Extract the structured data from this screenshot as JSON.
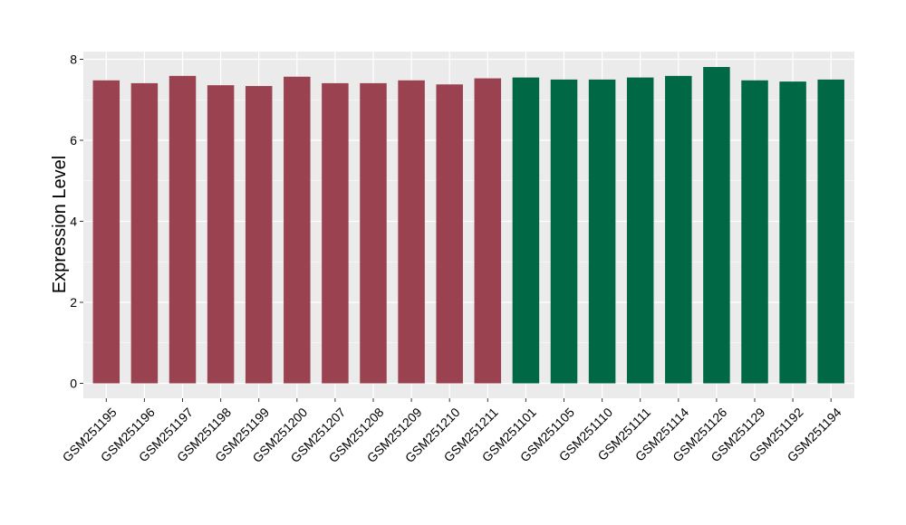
{
  "chart_data": {
    "type": "bar",
    "title": "",
    "xlabel": "",
    "ylabel": "Expression Level",
    "ylim": [
      0,
      8
    ],
    "yticks": [
      0,
      2,
      4,
      6,
      8
    ],
    "grid": true,
    "categories": [
      "GSM251195",
      "GSM251196",
      "GSM251197",
      "GSM251198",
      "GSM251199",
      "GSM251200",
      "GSM251207",
      "GSM251208",
      "GSM251209",
      "GSM251210",
      "GSM251211",
      "GSM251101",
      "GSM251105",
      "GSM251110",
      "GSM251111",
      "GSM251114",
      "GSM251126",
      "GSM251129",
      "GSM251192",
      "GSM251194"
    ],
    "values": [
      7.48,
      7.41,
      7.59,
      7.36,
      7.34,
      7.57,
      7.41,
      7.41,
      7.48,
      7.38,
      7.53,
      7.55,
      7.5,
      7.5,
      7.55,
      7.59,
      7.81,
      7.48,
      7.45,
      7.5
    ],
    "groups": [
      {
        "color": "#9a4250",
        "count": 11
      },
      {
        "color": "#006845",
        "count": 9
      }
    ]
  },
  "colors": {
    "panel_background": "#ebebeb",
    "grid": "#ffffff"
  }
}
